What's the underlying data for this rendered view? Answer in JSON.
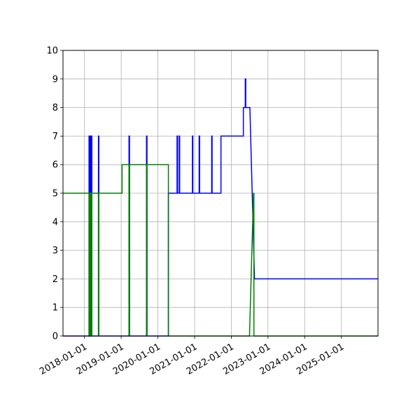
{
  "chart_data": {
    "type": "line",
    "title": "",
    "xlabel": "",
    "ylabel": "",
    "xlim": [
      "2017-06-01",
      "2025-12-31"
    ],
    "ylim": [
      0,
      10
    ],
    "grid": true,
    "x_ticks": [
      "2018-01-01",
      "2019-01-01",
      "2020-01-01",
      "2021-01-01",
      "2022-01-01",
      "2023-01-01",
      "2024-01-01",
      "2025-01-01"
    ],
    "y_ticks": [
      0,
      1,
      2,
      3,
      4,
      5,
      6,
      7,
      8,
      9,
      10
    ],
    "series": [
      {
        "color": "#0000ff",
        "points": [
          [
            "2017-06-01",
            0
          ],
          [
            "2018-02-15",
            0
          ],
          [
            "2018-02-15",
            7
          ],
          [
            "2018-02-20",
            7
          ],
          [
            "2018-02-20",
            0
          ],
          [
            "2018-03-01",
            0
          ],
          [
            "2018-03-01",
            7
          ],
          [
            "2018-03-08",
            7
          ],
          [
            "2018-03-08",
            0
          ],
          [
            "2018-03-10",
            0
          ],
          [
            "2018-03-10",
            7
          ],
          [
            "2018-03-15",
            7
          ],
          [
            "2018-03-15",
            0
          ],
          [
            "2018-05-20",
            0
          ],
          [
            "2018-05-20",
            7
          ],
          [
            "2018-05-24",
            7
          ],
          [
            "2018-05-24",
            0
          ],
          [
            "2019-03-20",
            0
          ],
          [
            "2019-03-20",
            7
          ],
          [
            "2019-03-25",
            7
          ],
          [
            "2019-03-25",
            0
          ],
          [
            "2019-09-10",
            0
          ],
          [
            "2019-09-10",
            7
          ],
          [
            "2019-09-15",
            7
          ],
          [
            "2019-09-15",
            0
          ],
          [
            "2020-04-15",
            0
          ],
          [
            "2020-04-15",
            5
          ],
          [
            "2020-07-10",
            5
          ],
          [
            "2020-07-10",
            7
          ],
          [
            "2020-07-15",
            7
          ],
          [
            "2020-07-15",
            5
          ],
          [
            "2020-08-01",
            5
          ],
          [
            "2020-08-01",
            7
          ],
          [
            "2020-08-05",
            7
          ],
          [
            "2020-08-05",
            5
          ],
          [
            "2020-12-10",
            5
          ],
          [
            "2020-12-10",
            7
          ],
          [
            "2020-12-14",
            7
          ],
          [
            "2020-12-14",
            5
          ],
          [
            "2021-02-15",
            5
          ],
          [
            "2021-02-15",
            7
          ],
          [
            "2021-02-20",
            7
          ],
          [
            "2021-02-20",
            5
          ],
          [
            "2021-06-20",
            5
          ],
          [
            "2021-06-20",
            7
          ],
          [
            "2021-06-24",
            7
          ],
          [
            "2021-06-24",
            5
          ],
          [
            "2021-09-20",
            5
          ],
          [
            "2021-09-20",
            7
          ],
          [
            "2022-05-01",
            7
          ],
          [
            "2022-05-01",
            8
          ],
          [
            "2022-05-20",
            8
          ],
          [
            "2022-05-20",
            9
          ],
          [
            "2022-05-25",
            9
          ],
          [
            "2022-05-25",
            8
          ],
          [
            "2022-07-05",
            8
          ],
          [
            "2022-08-20",
            2
          ],
          [
            "2025-12-31",
            2
          ]
        ]
      },
      {
        "color": "#008000",
        "points": [
          [
            "2017-06-01",
            5
          ],
          [
            "2018-02-15",
            5
          ],
          [
            "2018-02-15",
            0
          ],
          [
            "2018-02-20",
            0
          ],
          [
            "2018-02-20",
            5
          ],
          [
            "2018-03-01",
            5
          ],
          [
            "2018-03-01",
            0
          ],
          [
            "2018-03-08",
            0
          ],
          [
            "2018-03-08",
            5
          ],
          [
            "2018-03-10",
            5
          ],
          [
            "2018-03-10",
            0
          ],
          [
            "2018-03-15",
            0
          ],
          [
            "2018-03-15",
            5
          ],
          [
            "2018-05-20",
            5
          ],
          [
            "2018-05-20",
            0
          ],
          [
            "2018-05-24",
            0
          ],
          [
            "2018-05-24",
            5
          ],
          [
            "2019-01-10",
            5
          ],
          [
            "2019-01-10",
            6
          ],
          [
            "2019-03-20",
            6
          ],
          [
            "2019-03-20",
            0
          ],
          [
            "2019-03-25",
            0
          ],
          [
            "2019-03-25",
            6
          ],
          [
            "2019-09-10",
            6
          ],
          [
            "2019-09-10",
            0
          ],
          [
            "2019-09-15",
            0
          ],
          [
            "2019-09-15",
            6
          ],
          [
            "2020-04-15",
            6
          ],
          [
            "2020-04-15",
            0
          ],
          [
            "2022-07-01",
            0
          ],
          [
            "2022-08-10",
            5
          ],
          [
            "2022-08-14",
            5
          ],
          [
            "2022-08-14",
            0
          ],
          [
            "2025-12-31",
            0
          ]
        ]
      }
    ]
  }
}
